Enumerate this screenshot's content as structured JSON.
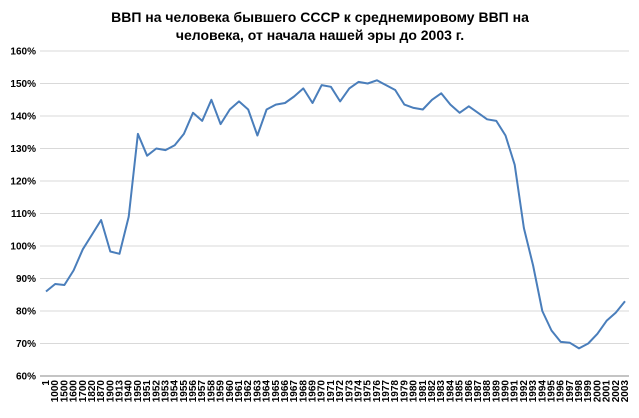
{
  "chart_data": {
    "type": "line",
    "title": "ВВП на человека бывшего СССР к среднемировому ВВП на человека, от начала нашей эры до 2003 г.",
    "categories": [
      "1",
      "1000",
      "1500",
      "1600",
      "1700",
      "1820",
      "1870",
      "1900",
      "1913",
      "1940",
      "1950",
      "1951",
      "1952",
      "1953",
      "1954",
      "1955",
      "1956",
      "1957",
      "1958",
      "1959",
      "1960",
      "1961",
      "1962",
      "1963",
      "1964",
      "1965",
      "1966",
      "1967",
      "1968",
      "1969",
      "1970",
      "1971",
      "1972",
      "1973",
      "1974",
      "1975",
      "1976",
      "1977",
      "1978",
      "1979",
      "1980",
      "1981",
      "1982",
      "1983",
      "1984",
      "1985",
      "1986",
      "1987",
      "1988",
      "1989",
      "1990",
      "1991",
      "1992",
      "1993",
      "1994",
      "1995",
      "1996",
      "1997",
      "1998",
      "1999",
      "2000",
      "2001",
      "2002",
      "2003"
    ],
    "series": [
      {
        "color": "#4a7ebb",
        "values": [
          86,
          88.3,
          88,
          92.5,
          99,
          103.5,
          108,
          98.3,
          97.6,
          109,
          134.5,
          127.8,
          130,
          129.5,
          131,
          134.5,
          141,
          138.5,
          145,
          137.5,
          142,
          144.5,
          142,
          134,
          142,
          143.5,
          144,
          146,
          148.5,
          144,
          149.5,
          149,
          144.5,
          148.5,
          150.5,
          150,
          151,
          149.5,
          148,
          143.5,
          142.5,
          142,
          145,
          147,
          143.5,
          141,
          143,
          141,
          139,
          138.5,
          134,
          125,
          105.5,
          94,
          80,
          74,
          70.5,
          70.2,
          68.5,
          70,
          73,
          77,
          79.5,
          83
        ]
      }
    ],
    "ylim": [
      60,
      160
    ],
    "yticks": [
      {
        "value": 60,
        "label": "60%"
      },
      {
        "value": 70,
        "label": "70%"
      },
      {
        "value": 80,
        "label": "80%"
      },
      {
        "value": 90,
        "label": "90%"
      },
      {
        "value": 100,
        "label": "100%"
      },
      {
        "value": 110,
        "label": "110%"
      },
      {
        "value": 120,
        "label": "120%"
      },
      {
        "value": 130,
        "label": "130%"
      },
      {
        "value": 140,
        "label": "140%"
      },
      {
        "value": 150,
        "label": "150%"
      },
      {
        "value": 160,
        "label": "160%"
      }
    ],
    "grid": true
  }
}
